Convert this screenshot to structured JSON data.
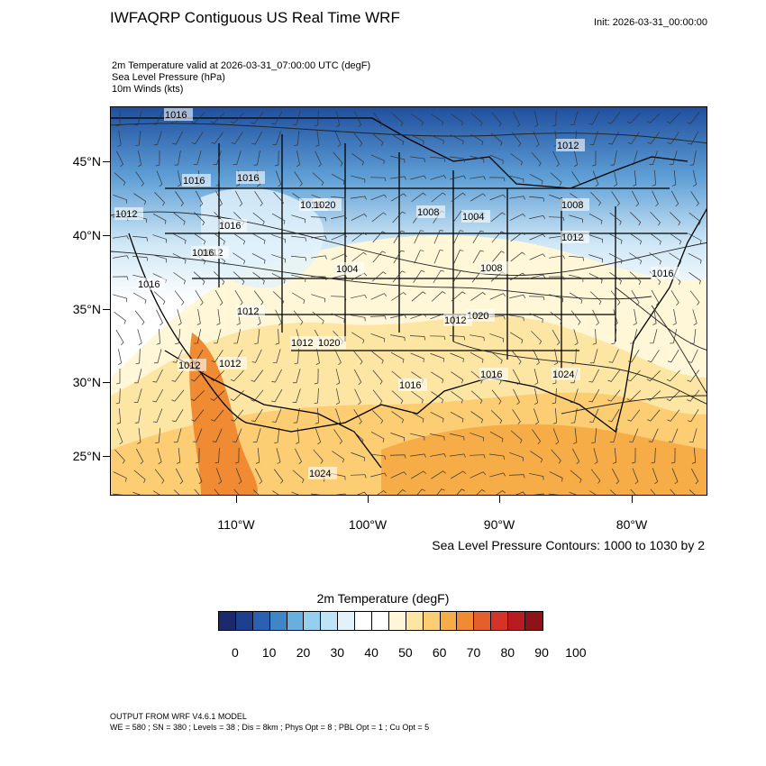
{
  "header": {
    "title": "IWFAQRP Contiguous US Real Time WRF",
    "init": "Init: 2026-03-31_00:00:00"
  },
  "fields": {
    "line1": "2m Temperature valid at 2026-03-31_07:00:00 UTC   (degF)",
    "line2": "Sea Level Pressure   (hPa)",
    "line3": "10m Winds   (kts)"
  },
  "map": {
    "lat_labels": [
      "45°N",
      "40°N",
      "35°N",
      "30°N",
      "25°N"
    ],
    "lon_labels": [
      "110°W",
      "100°W",
      "90°W",
      "80°W"
    ],
    "lat_range": [
      22.0,
      48.5
    ],
    "lon_range": [
      -120.0,
      -75.5
    ],
    "isobar_labels": [
      "1016",
      "1016",
      "1016",
      "1016",
      "1020",
      "1012",
      "1016",
      "1008",
      "1004",
      "1012",
      "1008",
      "1012",
      "1012",
      "1004",
      "1016",
      "1008",
      "1020",
      "1024",
      "1016",
      "1012",
      "1012",
      "1012",
      "1012",
      "1012",
      "1020",
      "1016",
      "1016",
      "1024",
      "1016"
    ]
  },
  "contour_note": "Sea Level Pressure Contours: 1000 to 1030 by 2",
  "colorbar": {
    "title": "2m Temperature  (degF)",
    "colors": [
      "#1a2a6c",
      "#1e3f8e",
      "#2a62b3",
      "#3f86c7",
      "#67afdf",
      "#96cfee",
      "#bfe3f6",
      "#e2f2fb",
      "#ffffff",
      "#ffffff",
      "#fff7d8",
      "#fde6a4",
      "#fccd73",
      "#f7ad47",
      "#f08a33",
      "#e45f2b",
      "#d63328",
      "#b91b23",
      "#8e1318"
    ],
    "labels": [
      "0",
      "10",
      "20",
      "30",
      "40",
      "50",
      "60",
      "70",
      "80",
      "90",
      "100"
    ]
  },
  "footer": {
    "line1": "OUTPUT FROM WRF V4.6.1 MODEL",
    "line2": "WE = 580 ; SN = 380 ; Levels = 38 ; Dis = 8km ; Phys Opt = 8 ; PBL Opt = 1 ; Cu Opt = 5"
  }
}
